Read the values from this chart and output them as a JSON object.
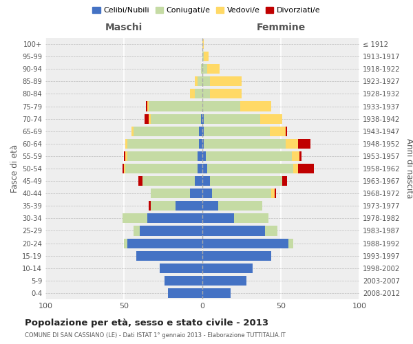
{
  "age_groups": [
    "0-4",
    "5-9",
    "10-14",
    "15-19",
    "20-24",
    "25-29",
    "30-34",
    "35-39",
    "40-44",
    "45-49",
    "50-54",
    "55-59",
    "60-64",
    "65-69",
    "70-74",
    "75-79",
    "80-84",
    "85-89",
    "90-94",
    "95-99",
    "100+"
  ],
  "birth_years": [
    "2008-2012",
    "2003-2007",
    "1998-2002",
    "1993-1997",
    "1988-1992",
    "1983-1987",
    "1978-1982",
    "1973-1977",
    "1968-1972",
    "1963-1967",
    "1958-1962",
    "1953-1957",
    "1948-1952",
    "1943-1947",
    "1938-1942",
    "1933-1937",
    "1928-1932",
    "1923-1927",
    "1918-1922",
    "1913-1917",
    "≤ 1912"
  ],
  "maschi": {
    "celibi": [
      22,
      24,
      27,
      42,
      48,
      40,
      35,
      17,
      8,
      5,
      3,
      3,
      2,
      2,
      1,
      0,
      0,
      0,
      0,
      0,
      0
    ],
    "coniugati": [
      0,
      0,
      0,
      0,
      2,
      4,
      16,
      16,
      25,
      33,
      46,
      45,
      46,
      42,
      32,
      34,
      5,
      3,
      1,
      0,
      0
    ],
    "vedovi": [
      0,
      0,
      0,
      0,
      0,
      0,
      0,
      0,
      0,
      0,
      1,
      1,
      1,
      1,
      1,
      1,
      3,
      2,
      0,
      0,
      0
    ],
    "divorziati": [
      0,
      0,
      0,
      0,
      0,
      0,
      0,
      1,
      0,
      3,
      1,
      1,
      0,
      0,
      3,
      1,
      0,
      0,
      0,
      0,
      0
    ]
  },
  "femmine": {
    "nubili": [
      18,
      28,
      32,
      44,
      55,
      40,
      20,
      10,
      6,
      5,
      3,
      2,
      1,
      1,
      1,
      0,
      0,
      0,
      0,
      0,
      0
    ],
    "coniugate": [
      0,
      0,
      0,
      0,
      3,
      8,
      22,
      28,
      38,
      46,
      55,
      55,
      52,
      42,
      36,
      24,
      5,
      5,
      3,
      1,
      0
    ],
    "vedove": [
      0,
      0,
      0,
      0,
      0,
      0,
      0,
      0,
      2,
      0,
      3,
      5,
      8,
      10,
      14,
      20,
      20,
      20,
      8,
      3,
      1
    ],
    "divorziate": [
      0,
      0,
      0,
      0,
      0,
      0,
      0,
      0,
      1,
      3,
      10,
      1,
      8,
      1,
      0,
      0,
      0,
      0,
      0,
      0,
      0
    ]
  },
  "colors": {
    "celibi": "#4472c4",
    "coniugati": "#c5dba4",
    "vedovi": "#ffd966",
    "divorziati": "#c00000"
  },
  "title": "Popolazione per età, sesso e stato civile - 2013",
  "subtitle": "COMUNE DI SAN CASSIANO (LE) - Dati ISTAT 1° gennaio 2013 - Elaborazione TUTTITALIA.IT",
  "xlabel_left": "Maschi",
  "xlabel_right": "Femmine",
  "ylabel_left": "Fasce di età",
  "ylabel_right": "Anni di nascita",
  "xlim": 100,
  "bg_color": "#eeeeee",
  "legend_labels": [
    "Celibi/Nubili",
    "Coniugati/e",
    "Vedovi/e",
    "Divorziati/e"
  ]
}
